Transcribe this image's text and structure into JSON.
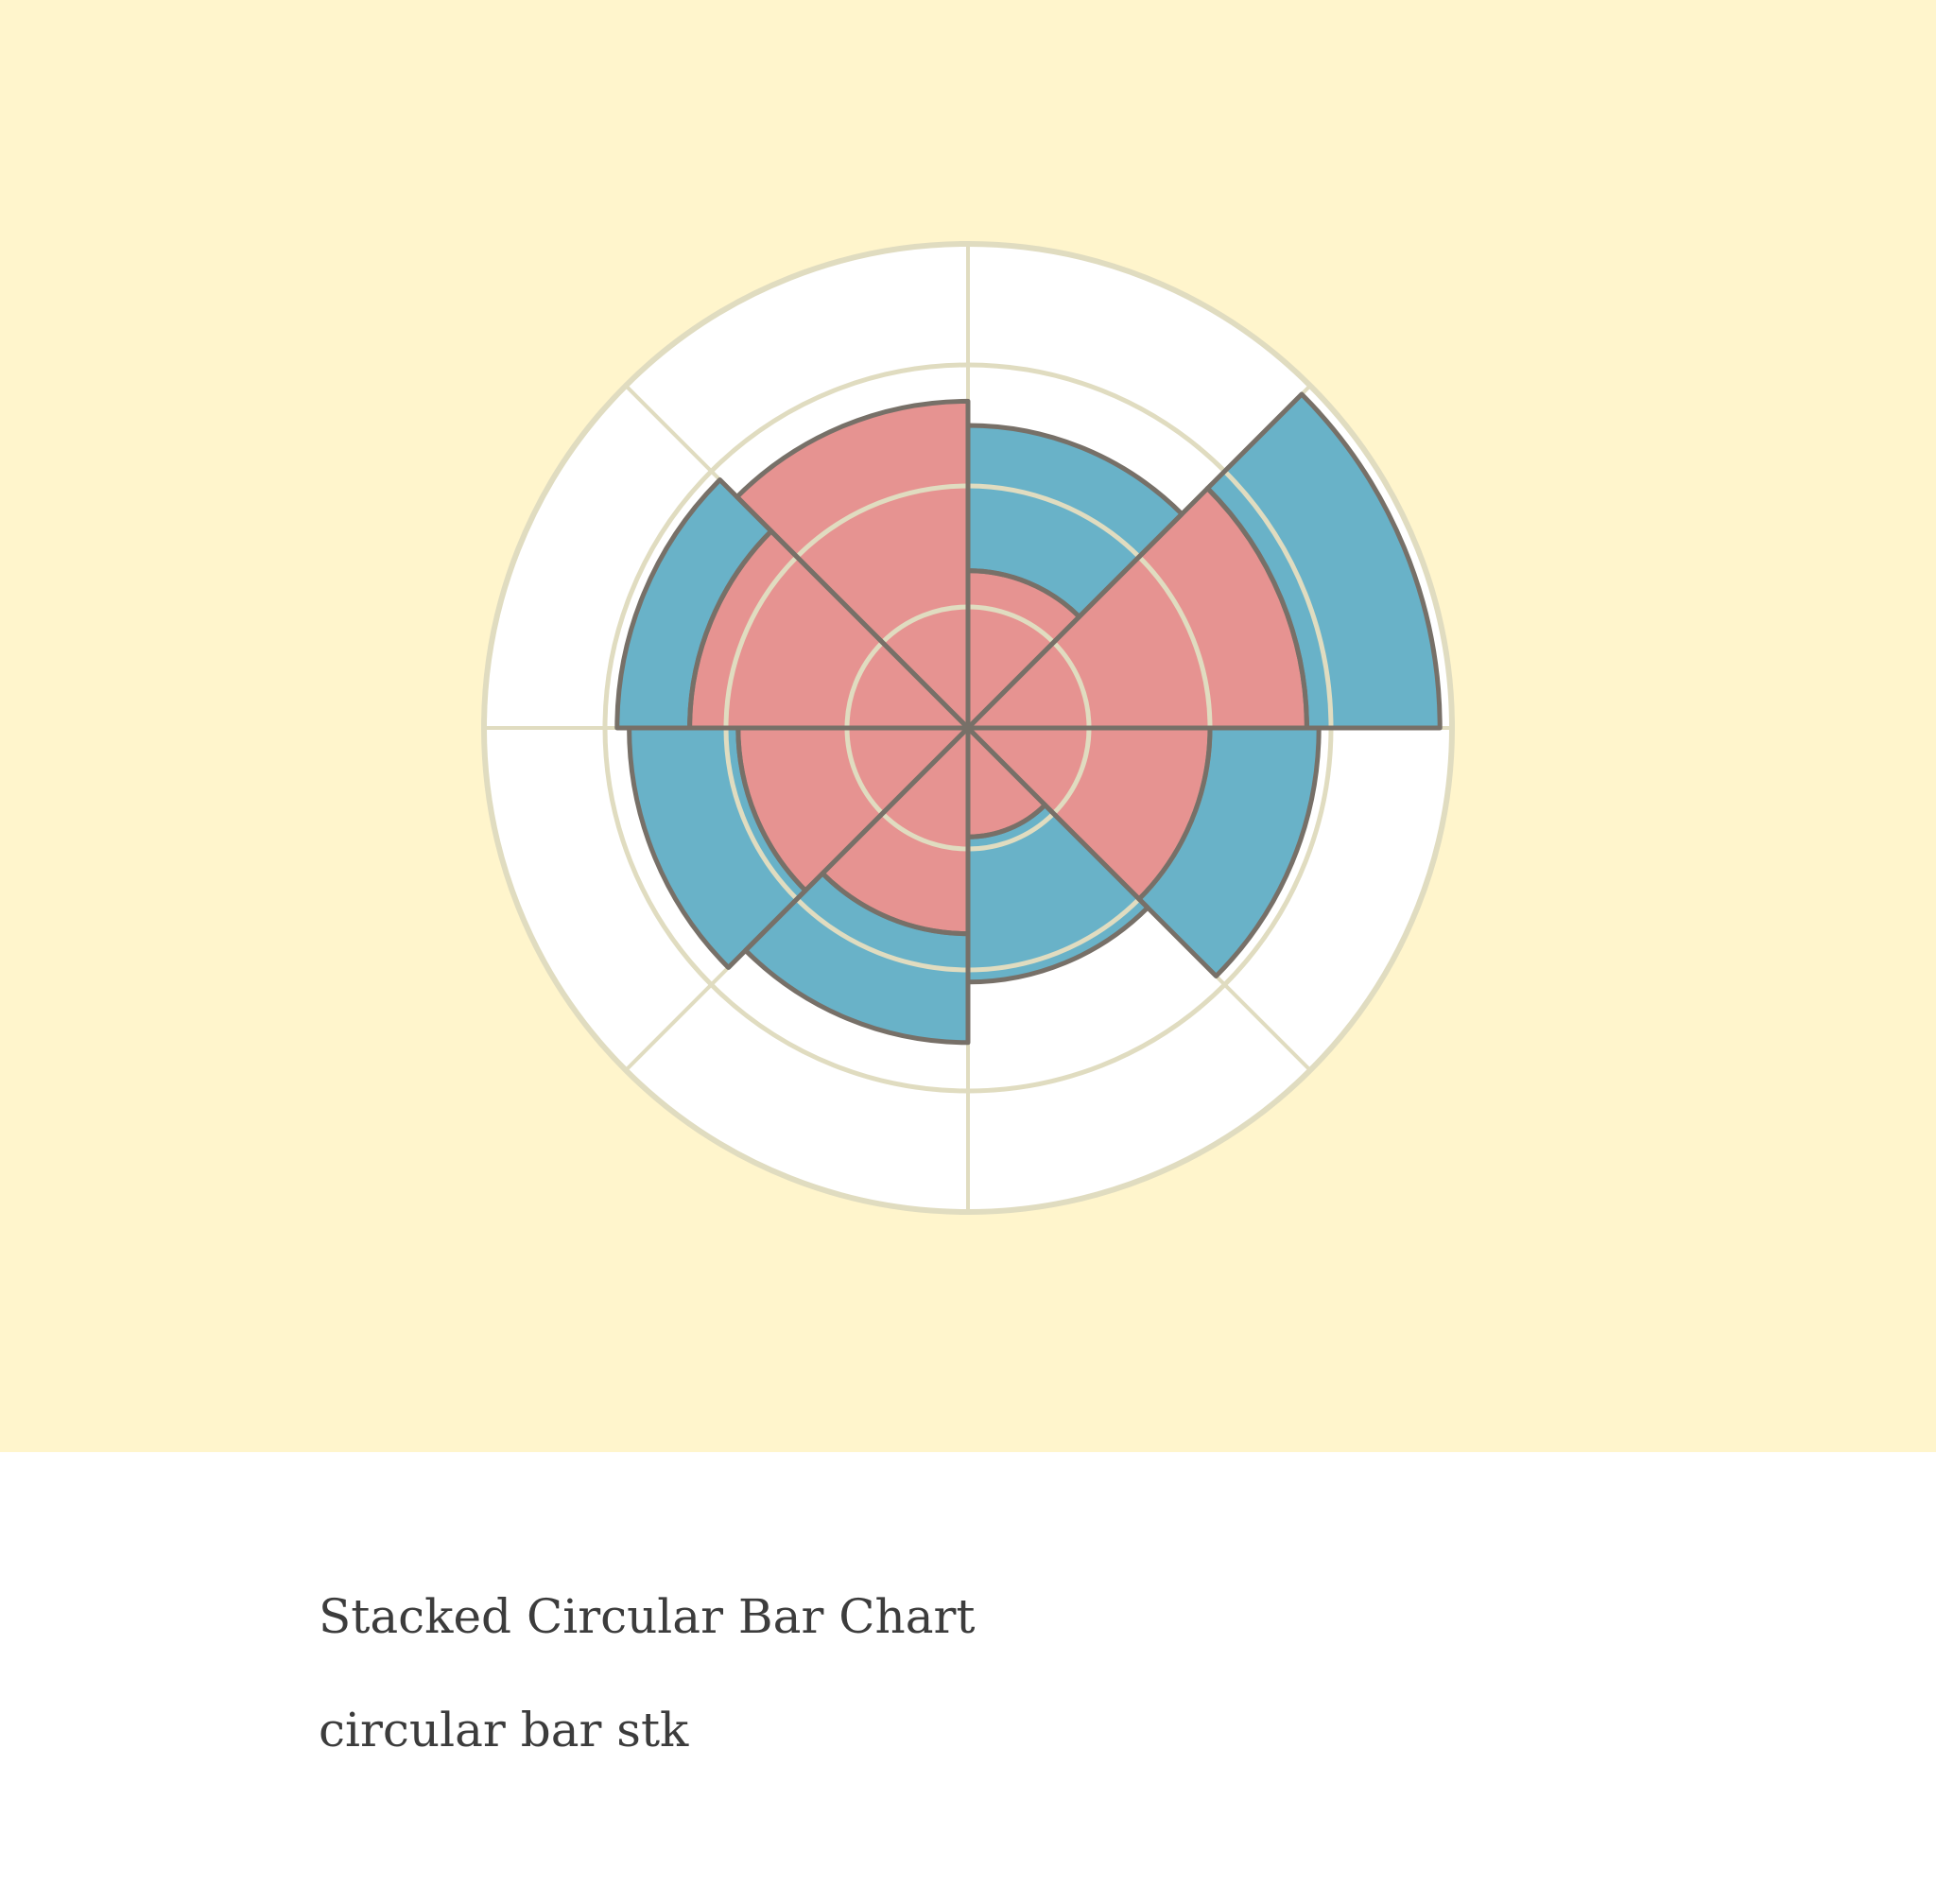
{
  "card": {
    "title": "Stacked Circular Bar Chart",
    "subtitle": "circular bar stk"
  },
  "colors": {
    "background": "#fff5cc",
    "panel": "#ffffff",
    "grid": "#e0dcc0",
    "outline": "#777068",
    "series_1": "#e69391",
    "series_2": "#69b2c8"
  },
  "chart_data": {
    "type": "bar",
    "polar": true,
    "stacked": true,
    "grid": true,
    "r_max": 4,
    "radial_gridlines": [
      1,
      2,
      3,
      4
    ],
    "categories": [
      "",
      "",
      "",
      "",
      "",
      "",
      "",
      ""
    ],
    "series": [
      {
        "values": [
          1.3,
          2.8,
          2.0,
          0.9,
          1.7,
          1.9,
          2.3,
          2.7
        ]
      },
      {
        "values": [
          1.2,
          1.1,
          0.9,
          1.2,
          0.9,
          0.9,
          0.6,
          0.0
        ]
      }
    ]
  }
}
